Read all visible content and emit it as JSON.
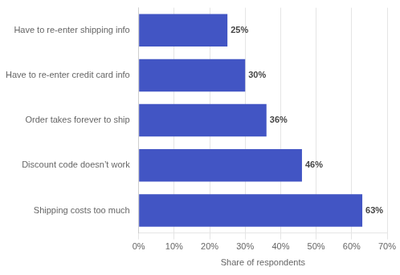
{
  "chart_data": {
    "type": "bar",
    "orientation": "horizontal",
    "categories": [
      "Have to re-enter shipping info",
      "Have to re-enter credit card info",
      "Order takes forever to ship",
      "Discount code doesn’t work",
      "Shipping costs too much"
    ],
    "values": [
      25,
      30,
      36,
      46,
      63
    ],
    "value_labels": [
      "25%",
      "30%",
      "36%",
      "46%",
      "63%"
    ],
    "data_labels": true,
    "color": "#4255c4",
    "xlabel": "Share of respondents",
    "xlim": [
      0,
      70
    ],
    "xticks": [
      {
        "value": 0,
        "label": "0%"
      },
      {
        "value": 10,
        "label": "10%"
      },
      {
        "value": 20,
        "label": "20%"
      },
      {
        "value": 30,
        "label": "30%"
      },
      {
        "value": 40,
        "label": "40%"
      },
      {
        "value": 50,
        "label": "50%"
      },
      {
        "value": 60,
        "label": "60%"
      },
      {
        "value": 70,
        "label": "70%"
      }
    ],
    "grid": true
  }
}
